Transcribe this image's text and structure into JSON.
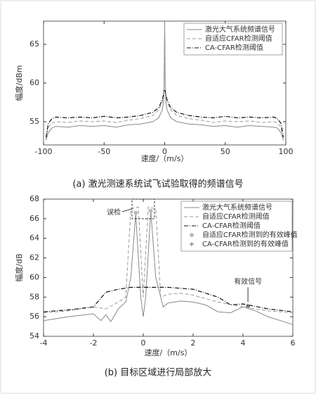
{
  "chart_data": [
    {
      "type": "line",
      "title": "(a) 激光测速系统试飞试验取得的频谱信号",
      "xlabel": "速度/（m/s）",
      "ylabel": "幅度/dBm",
      "xlim": [
        -100,
        100
      ],
      "ylim": [
        52,
        68
      ],
      "xticks": [
        -100,
        -50,
        0,
        50,
        100
      ],
      "yticks": [
        55,
        60,
        65
      ],
      "series": [
        {
          "name": "激光大气系统频谱信号",
          "color": "#888888",
          "style": "solid",
          "x": [
            -98,
            -96,
            -93,
            -90,
            -80,
            -70,
            -60,
            -50,
            -40,
            -30,
            -20,
            -10,
            -5,
            -2,
            -1,
            -0.5,
            0,
            0.5,
            1,
            2,
            5,
            10,
            20,
            30,
            40,
            50,
            60,
            70,
            80,
            90,
            93,
            96,
            98
          ],
          "values": [
            52.6,
            53.6,
            54.2,
            54.4,
            54.3,
            54.5,
            54.4,
            54.5,
            54.3,
            54.6,
            54.7,
            55.0,
            55.5,
            56.5,
            57.5,
            59,
            68,
            59,
            57.5,
            56.5,
            55.5,
            55.0,
            54.7,
            54.6,
            54.4,
            54.5,
            54.3,
            54.5,
            54.4,
            54.3,
            54.2,
            53.6,
            52.6
          ]
        },
        {
          "name": "自适应CFAR检测阈值",
          "color": "#999999",
          "style": "dashed",
          "x": [
            -98,
            -96,
            -93,
            -90,
            -80,
            -70,
            -60,
            -50,
            -40,
            -30,
            -20,
            -10,
            -5,
            -2,
            -1,
            -0.5,
            0,
            0.5,
            1,
            2,
            5,
            10,
            20,
            30,
            40,
            50,
            60,
            70,
            80,
            90,
            93,
            96,
            98
          ],
          "values": [
            52.8,
            54.3,
            54.8,
            55.0,
            54.9,
            55.1,
            55.0,
            55.1,
            54.9,
            55.2,
            55.4,
            55.8,
            56.5,
            57.5,
            58.5,
            59.5,
            67.5,
            59.5,
            58.5,
            57.5,
            56.5,
            55.8,
            55.4,
            55.2,
            54.9,
            55.1,
            55.0,
            55.1,
            54.9,
            55.0,
            54.8,
            54.3,
            52.8
          ]
        },
        {
          "name": "CA-CFAR检测阈值",
          "color": "#111111",
          "style": "dashdot",
          "x": [
            -98,
            -96,
            -93,
            -90,
            -80,
            -70,
            -60,
            -50,
            -40,
            -30,
            -20,
            -10,
            -5,
            -2,
            -1,
            -0.5,
            0,
            0.5,
            1,
            2,
            5,
            10,
            20,
            30,
            40,
            50,
            60,
            70,
            80,
            90,
            93,
            96,
            98
          ],
          "values": [
            53,
            54.8,
            55.4,
            55.6,
            55.5,
            55.6,
            55.5,
            55.7,
            55.5,
            55.6,
            55.8,
            56.2,
            56.8,
            57.8,
            58.5,
            59,
            59,
            59,
            58.5,
            57.8,
            56.8,
            56.2,
            55.8,
            55.6,
            55.5,
            55.7,
            55.5,
            55.6,
            55.5,
            55.6,
            55.4,
            54.8,
            53
          ]
        }
      ]
    },
    {
      "type": "line",
      "title": "(b) 目标区域进行局部放大",
      "xlabel": "速度/（m/s）",
      "ylabel": "幅度/dB",
      "xlim": [
        -4,
        6
      ],
      "ylim": [
        54,
        68
      ],
      "xticks": [
        -4,
        -2,
        0,
        2,
        4,
        6
      ],
      "yticks": [
        54,
        56,
        58,
        60,
        62,
        64,
        66,
        68
      ],
      "annotations": [
        "误检",
        "有效信号"
      ],
      "series": [
        {
          "name": "激光大气系统频谱信号",
          "color": "#888888",
          "style": "solid",
          "x": [
            -4,
            -3,
            -2,
            -1.7,
            -1.5,
            -1.3,
            -1,
            -0.7,
            -0.5,
            -0.3,
            -0.1,
            0,
            0.1,
            0.3,
            0.5,
            0.8,
            1,
            1.5,
            2,
            2.5,
            3,
            3.5,
            4,
            4.5,
            5,
            5.5,
            6
          ],
          "values": [
            55.6,
            56,
            56.3,
            55.6,
            56.2,
            55.5,
            56.8,
            57.5,
            60,
            66.5,
            58,
            56,
            58,
            66.8,
            60,
            57,
            57.4,
            57.6,
            57.5,
            57.2,
            56.5,
            56.4,
            57,
            56.6,
            56,
            55.6,
            55.2
          ]
        },
        {
          "name": "自适应CFAR检测阈值",
          "color": "#999999",
          "style": "dashed",
          "x": [
            -4,
            -3,
            -2,
            -1.5,
            -1,
            -0.7,
            -0.5,
            -0.2,
            0,
            0.2,
            0.5,
            0.7,
            1,
            1.5,
            2,
            3,
            4,
            5,
            6
          ],
          "values": [
            56.4,
            56.6,
            57,
            56.8,
            57.5,
            58,
            67,
            67.2,
            58,
            67.2,
            67,
            58,
            58.3,
            58.4,
            58.2,
            57.5,
            57,
            56.6,
            56.4
          ]
        },
        {
          "name": "CA-CFAR检测阈值",
          "color": "#111111",
          "style": "dashdot",
          "x": [
            -4,
            -3,
            -2,
            -1.5,
            -1,
            -0.5,
            0,
            0.5,
            1,
            2,
            3,
            3.5,
            4,
            5,
            6
          ],
          "values": [
            56.5,
            56.7,
            57,
            58.5,
            58.8,
            59,
            59,
            59,
            59,
            58.8,
            58,
            57.2,
            57.3,
            56.8,
            56.5
          ]
        },
        {
          "name": "自适应CFAR检测到的有效峰值",
          "color": "#bbbbbb",
          "style": "circle",
          "x": [
            -0.3,
            0.3,
            4.2
          ],
          "values": [
            66.6,
            66.8,
            57.0
          ]
        },
        {
          "name": "CA-CFAR检测到的有效峰值",
          "color": "#666666",
          "style": "asterisk",
          "x": [
            4.2
          ],
          "values": [
            57.1
          ]
        }
      ]
    }
  ]
}
